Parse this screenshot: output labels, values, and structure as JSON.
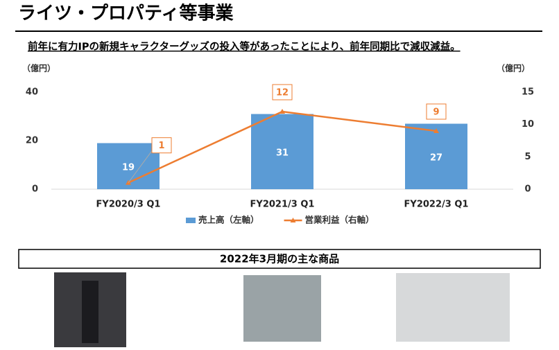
{
  "page_title": "ライツ・プロパティ等事業",
  "subtitle": "前年に有力IPの新規キャラクターグッズの投入等があったことにより、前年同期比で減収減益。",
  "chart_data": {
    "type": "combo",
    "y_label": "（億円）",
    "y2_label": "（億円）",
    "categories": [
      "FY2020/3 Q1",
      "FY2021/3 Q1",
      "FY2022/3 Q1"
    ],
    "series": [
      {
        "name": "売上高（左軸）",
        "type": "bar",
        "color": "#5b9bd5",
        "values": [
          19,
          31,
          27
        ]
      },
      {
        "name": "営業利益（右軸）",
        "type": "line",
        "axis": "y2",
        "color": "#ed7d31",
        "values": [
          1,
          12,
          9
        ]
      }
    ],
    "ylim": [
      0,
      40
    ],
    "yticks": [
      0,
      20,
      40
    ],
    "y2lim": [
      0,
      15
    ],
    "y2ticks": [
      0,
      5,
      10,
      15
    ]
  },
  "products_heading": "2022年3月期の主な商品"
}
